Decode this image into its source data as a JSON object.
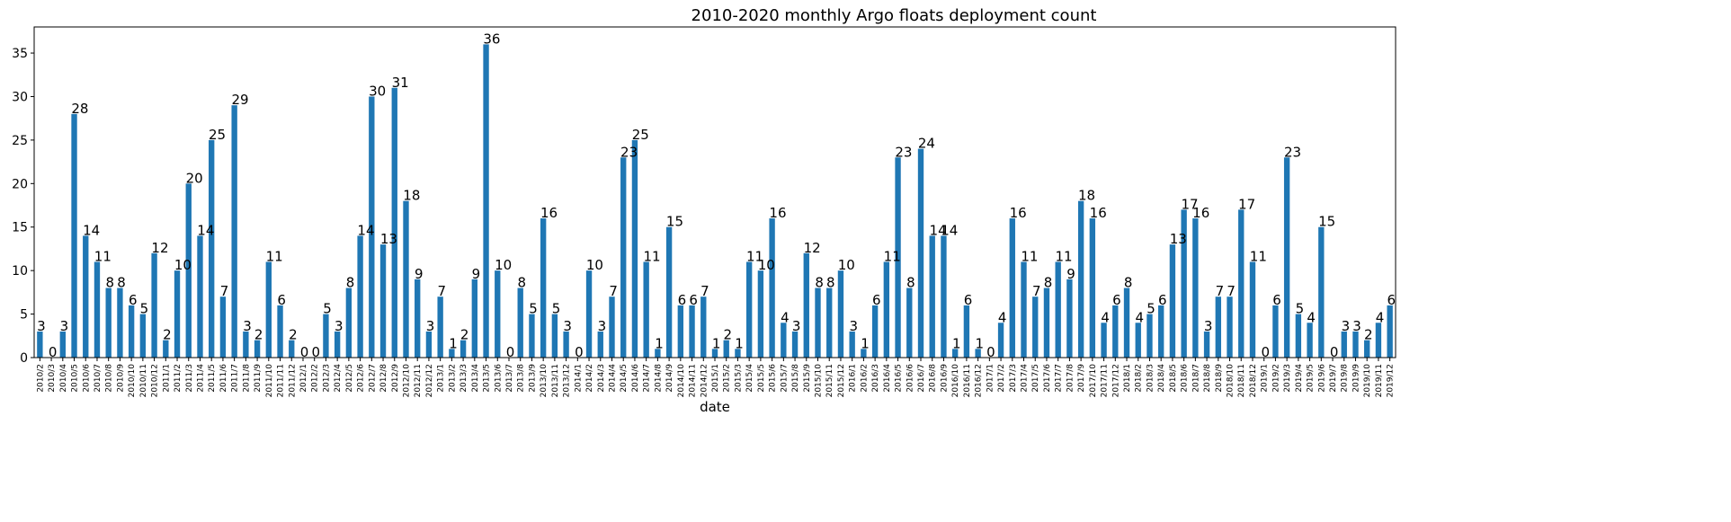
{
  "chart_data": {
    "type": "bar",
    "title": "2010-2020 monthly Argo floats deployment count",
    "xlabel": "date",
    "ylabel": "",
    "ylim": [
      0,
      38
    ],
    "yticks": [
      0,
      5,
      10,
      15,
      20,
      25,
      30,
      35
    ],
    "grid": false,
    "bar_color": "#1f77b4",
    "categories": [
      "2010/2",
      "2010/3",
      "2010/4",
      "2010/5",
      "2010/6",
      "2010/7",
      "2010/8",
      "2010/9",
      "2010/10",
      "2010/11",
      "2010/12",
      "2011/1",
      "2011/2",
      "2011/3",
      "2011/4",
      "2011/5",
      "2011/6",
      "2011/7",
      "2011/8",
      "2011/9",
      "2011/10",
      "2011/11",
      "2011/12",
      "2012/1",
      "2012/2",
      "2012/3",
      "2012/4",
      "2012/5",
      "2012/6",
      "2012/7",
      "2012/8",
      "2012/9",
      "2012/10",
      "2012/11",
      "2012/12",
      "2013/1",
      "2013/2",
      "2013/3",
      "2013/4",
      "2013/5",
      "2013/6",
      "2013/7",
      "2013/8",
      "2013/9",
      "2013/10",
      "2013/11",
      "2013/12",
      "2014/1",
      "2014/2",
      "2014/3",
      "2014/4",
      "2014/5",
      "2014/6",
      "2014/7",
      "2014/8",
      "2014/9",
      "2014/10",
      "2014/11",
      "2014/12",
      "2015/1",
      "2015/2",
      "2015/3",
      "2015/4",
      "2015/5",
      "2015/6",
      "2015/7",
      "2015/8",
      "2015/9",
      "2015/10",
      "2015/11",
      "2015/12",
      "2016/1",
      "2016/2",
      "2016/3",
      "2016/4",
      "2016/5",
      "2016/6",
      "2016/7",
      "2016/8",
      "2016/9",
      "2016/10",
      "2016/11",
      "2016/12",
      "2017/1",
      "2017/2",
      "2017/3",
      "2017/4",
      "2017/5",
      "2017/6",
      "2017/7",
      "2017/8",
      "2017/9",
      "2017/10",
      "2017/11",
      "2017/12",
      "2018/1",
      "2018/2",
      "2018/3",
      "2018/4",
      "2018/5",
      "2018/6",
      "2018/7",
      "2018/8",
      "2018/9",
      "2018/10",
      "2018/11",
      "2018/12",
      "2019/1",
      "2019/2",
      "2019/3",
      "2019/4",
      "2019/5",
      "2019/6",
      "2019/7",
      "2019/8",
      "2019/9",
      "2019/10",
      "2019/11",
      "2019/12"
    ],
    "values": [
      3,
      0,
      3,
      28,
      14,
      11,
      8,
      8,
      6,
      5,
      12,
      2,
      10,
      20,
      14,
      25,
      7,
      29,
      3,
      2,
      11,
      6,
      2,
      0,
      0,
      5,
      3,
      8,
      14,
      30,
      13,
      31,
      18,
      9,
      3,
      7,
      1,
      2,
      9,
      36,
      10,
      0,
      8,
      5,
      16,
      5,
      3,
      0,
      10,
      3,
      7,
      23,
      25,
      11,
      1,
      15,
      6,
      6,
      7,
      1,
      2,
      1,
      11,
      10,
      16,
      4,
      3,
      12,
      8,
      8,
      10,
      3,
      1,
      6,
      11,
      23,
      8,
      24,
      14,
      14,
      1,
      6,
      1,
      0,
      4,
      16,
      11,
      7,
      8,
      11,
      9,
      18,
      16,
      4,
      6,
      8,
      4,
      5,
      6,
      13,
      17,
      16,
      3,
      7,
      7,
      17,
      11,
      0,
      6,
      23,
      5,
      4,
      15,
      0,
      3,
      3,
      2,
      4,
      6
    ]
  }
}
